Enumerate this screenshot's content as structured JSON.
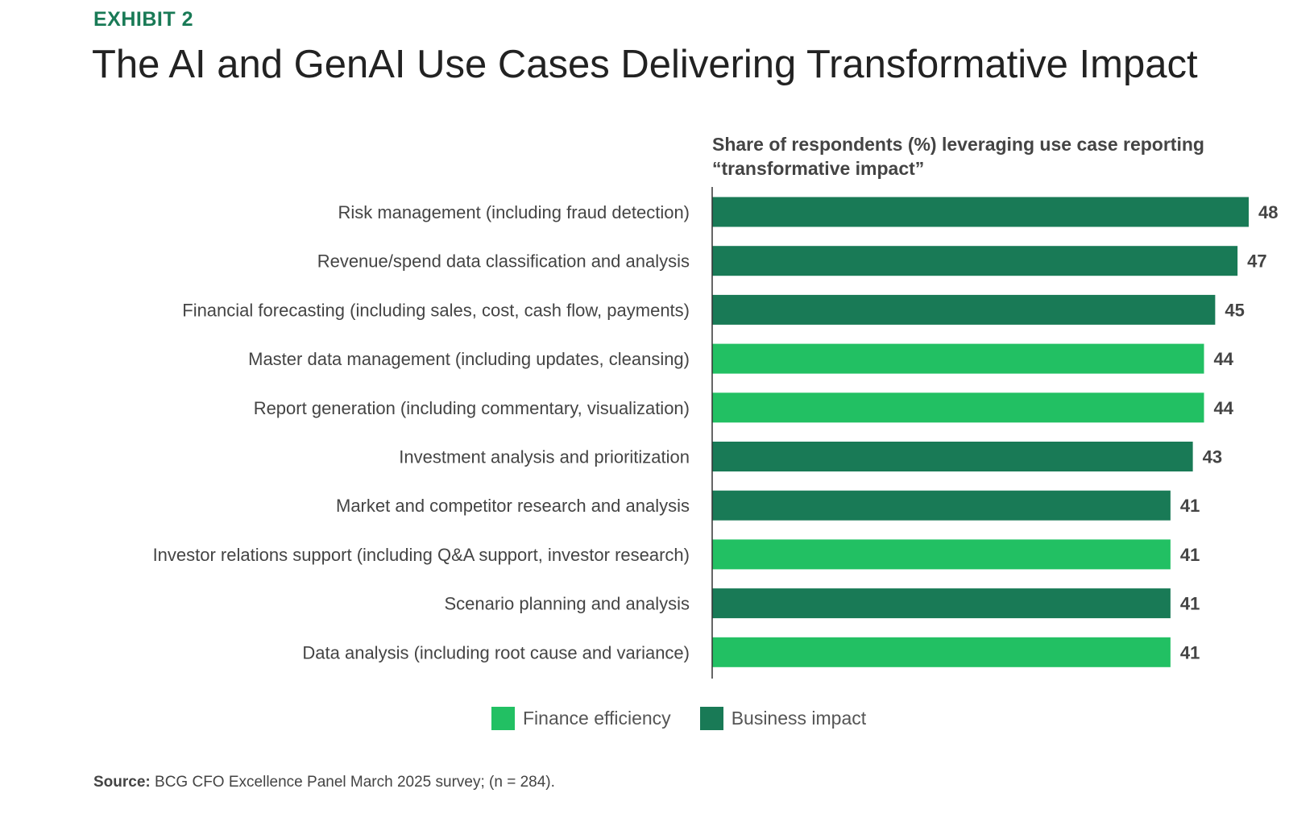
{
  "header": {
    "exhibit_label": "EXHIBIT 2",
    "title": "The AI and GenAI Use Cases Delivering Transformative Impact"
  },
  "colors": {
    "finance_efficiency": "#22C063",
    "business_impact": "#197A56",
    "exhibit_label": "#197A56",
    "axis": "#333333"
  },
  "chart_data": {
    "type": "bar",
    "orientation": "horizontal",
    "subtitle": "Share of respondents (%) leveraging use case reporting “transformative impact”",
    "categories": [
      "Risk management (including fraud detection)",
      "Revenue/spend data classification and analysis",
      "Financial forecasting (including sales, cost, cash flow, payments)",
      "Master data management (including updates, cleansing)",
      "Report generation (including commentary, visualization)",
      "Investment analysis and prioritization",
      "Market and competitor research and analysis",
      "Investor relations support (including Q&A support, investor research)",
      "Scenario planning and analysis",
      "Data analysis (including root cause and variance)"
    ],
    "values": [
      48,
      47,
      45,
      44,
      44,
      43,
      41,
      41,
      41,
      41
    ],
    "groups": [
      "Business impact",
      "Business impact",
      "Business impact",
      "Finance efficiency",
      "Finance efficiency",
      "Business impact",
      "Business impact",
      "Finance efficiency",
      "Business impact",
      "Finance efficiency"
    ],
    "legend": [
      {
        "name": "Finance efficiency",
        "color": "#22C063"
      },
      {
        "name": "Business impact",
        "color": "#197A56"
      }
    ],
    "xlim": [
      0,
      48
    ],
    "grid": false,
    "legend_position": "bottom-center"
  },
  "source": {
    "label": "Source:",
    "text": " BCG CFO Excellence Panel March 2025 survey; (n = 284)."
  }
}
